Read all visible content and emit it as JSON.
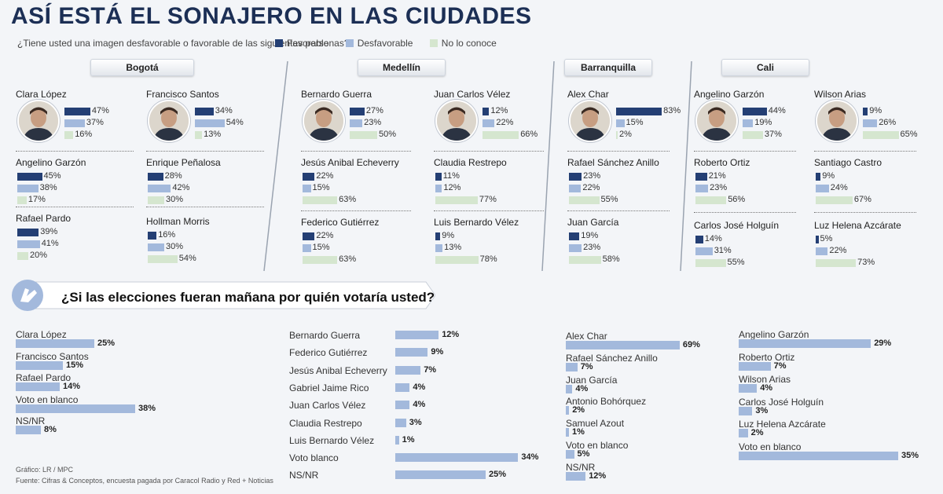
{
  "header": {
    "title": "ASÍ ESTÁ EL SONAJERO EN LAS CIUDADES",
    "question": "¿Tiene usted una imagen desfavorable o favorable de las siguientes personas?",
    "legend": [
      {
        "label": "Favorable",
        "color": "#243f74"
      },
      {
        "label": "Desfavorable",
        "color": "#a3b9dc"
      },
      {
        "label": "No lo conoce",
        "color": "#d5e6cf"
      }
    ]
  },
  "chart_data": [
    {
      "type": "bar",
      "series_names": [
        "Favorable",
        "Desfavorable",
        "No lo conoce"
      ],
      "cities": [
        {
          "name": "Bogotá",
          "people": [
            {
              "name": "Clara López",
              "values": [
                47,
                37,
                16
              ],
              "photo": true
            },
            {
              "name": "Francisco Santos",
              "values": [
                34,
                54,
                13
              ],
              "photo": true
            },
            {
              "name": "Angelino Garzón",
              "values": [
                45,
                38,
                17
              ]
            },
            {
              "name": "Enrique Peñalosa",
              "values": [
                28,
                42,
                30
              ]
            },
            {
              "name": "Rafael Pardo",
              "values": [
                39,
                41,
                20
              ]
            },
            {
              "name": "Hollman Morris",
              "values": [
                16,
                30,
                54
              ]
            }
          ]
        },
        {
          "name": "Medellín",
          "people": [
            {
              "name": "Bernardo Guerra",
              "values": [
                27,
                23,
                50
              ],
              "photo": true
            },
            {
              "name": "Juan Carlos Vélez",
              "values": [
                12,
                22,
                66
              ],
              "photo": true
            },
            {
              "name": "Jesús Anibal Echeverry",
              "values": [
                22,
                15,
                63
              ]
            },
            {
              "name": "Claudia Restrepo",
              "values": [
                11,
                12,
                77
              ]
            },
            {
              "name": "Federico Gutiérrez",
              "values": [
                22,
                15,
                63
              ]
            },
            {
              "name": "Luis Bernardo Vélez",
              "values": [
                9,
                13,
                78
              ]
            }
          ]
        },
        {
          "name": "Barranquilla",
          "people": [
            {
              "name": "Alex Char",
              "values": [
                83,
                15,
                2
              ],
              "photo": true
            },
            {
              "name": "Rafael Sánchez Anillo",
              "values": [
                23,
                22,
                55
              ]
            },
            {
              "name": "Juan García",
              "values": [
                19,
                23,
                58
              ]
            }
          ]
        },
        {
          "name": "Cali",
          "people": [
            {
              "name": "Angelino Garzón",
              "values": [
                44,
                19,
                37
              ],
              "photo": true
            },
            {
              "name": "Wilson Arias",
              "values": [
                9,
                26,
                65
              ],
              "photo": true
            },
            {
              "name": "Roberto Ortiz",
              "values": [
                21,
                23,
                56
              ]
            },
            {
              "name": "Santiago Castro",
              "values": [
                9,
                24,
                67
              ]
            },
            {
              "name": "Carlos José Holguín",
              "values": [
                14,
                31,
                55
              ]
            },
            {
              "name": "Luz Helena Azcárate",
              "values": [
                5,
                22,
                73
              ]
            }
          ]
        }
      ]
    },
    {
      "type": "bar",
      "title": "¿Si las elecciones fueran mañana por quién votaría usted?",
      "cities": [
        {
          "name": "Bogotá",
          "categories": [
            "Clara López",
            "Francisco Santos",
            "Rafael Pardo",
            "Voto en blanco",
            "NS/NR"
          ],
          "values": [
            25,
            15,
            14,
            38,
            8
          ]
        },
        {
          "name": "Medellín",
          "categories": [
            "Bernardo Guerra",
            "Federico Gutiérrez",
            "Jesús Anibal Echeverry",
            "Gabriel Jaime Rico",
            "Juan Carlos Vélez",
            "Claudia Restrepo",
            "Luis Bernardo Vélez",
            "Voto blanco",
            "NS/NR"
          ],
          "values": [
            12,
            9,
            7,
            4,
            4,
            3,
            1,
            34,
            25
          ]
        },
        {
          "name": "Barranquilla",
          "categories": [
            "Alex Char",
            "Rafael Sánchez Anillo",
            "Juan García",
            "Antonio Bohórquez",
            "Samuel Azout",
            "Voto en blanco",
            "NS/NR"
          ],
          "values": [
            69,
            7,
            4,
            2,
            1,
            5,
            12
          ]
        },
        {
          "name": "Cali",
          "categories": [
            "Angelino Garzón",
            "Roberto Ortiz",
            "Wilson Arias",
            "Carlos José Holguín",
            "Luz Helena Azcárate",
            "Voto en blanco"
          ],
          "values": [
            29,
            7,
            4,
            3,
            2,
            35
          ]
        }
      ]
    }
  ],
  "footer": {
    "credit": "Gráfico: LR / MPC",
    "source": "Fuente: Cifras & Conceptos, encuesta pagada por Caracol Radio y Red + Noticias"
  }
}
